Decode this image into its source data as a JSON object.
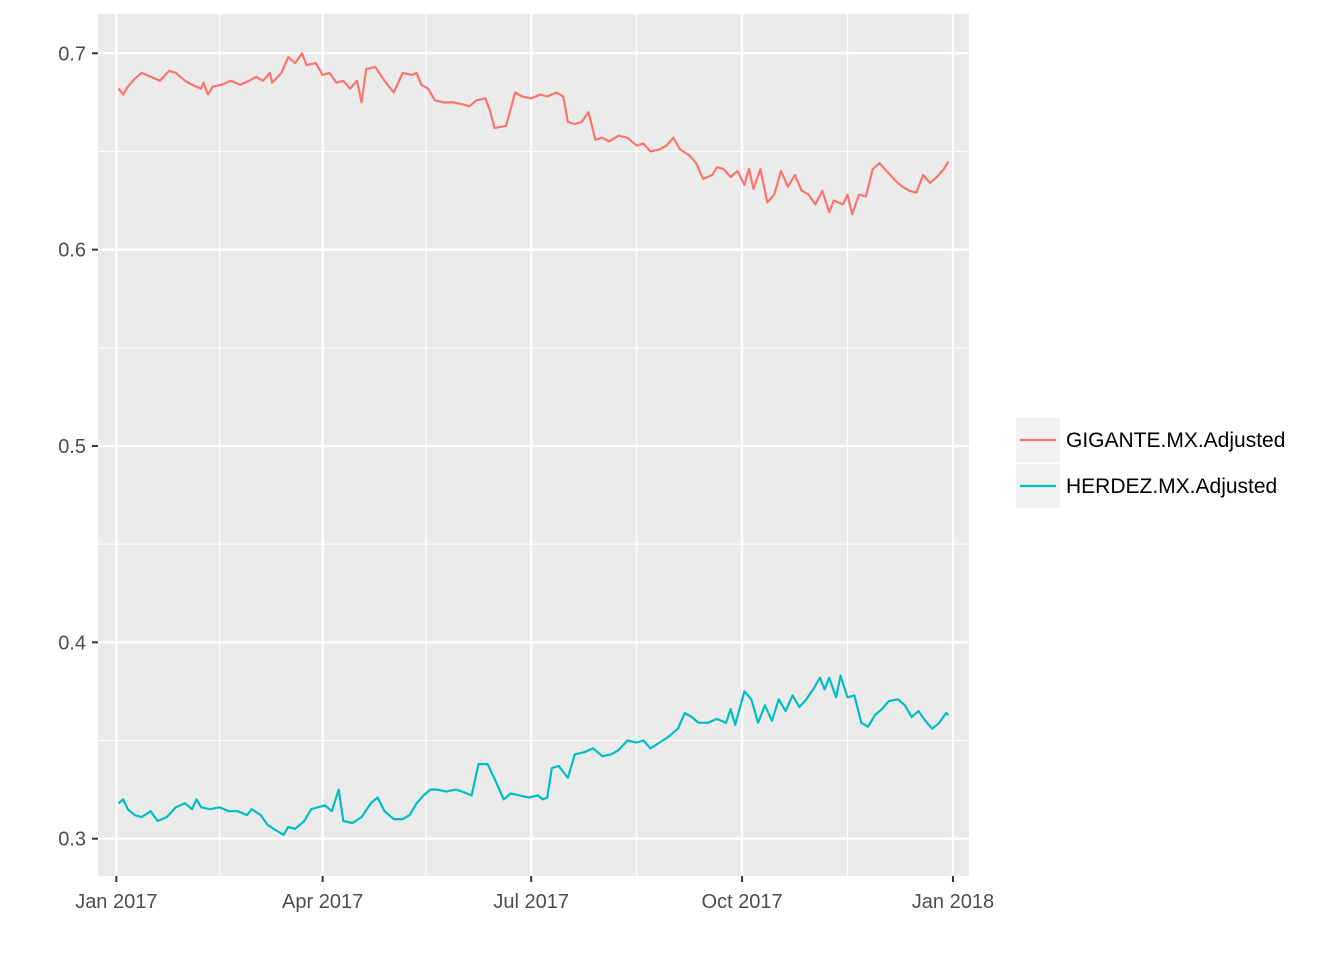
{
  "chart_data": {
    "type": "line",
    "title": "",
    "xlabel": "",
    "ylabel": "",
    "x_axis": {
      "type": "date",
      "range": [
        "2016-12-24",
        "2018-01-08"
      ],
      "ticks": [
        {
          "value": "2017-01-01",
          "label": "Jan 2017"
        },
        {
          "value": "2017-04-01",
          "label": "Apr 2017"
        },
        {
          "value": "2017-07-01",
          "label": "Jul 2017"
        },
        {
          "value": "2017-10-01",
          "label": "Oct 2017"
        },
        {
          "value": "2018-01-01",
          "label": "Jan 2018"
        }
      ],
      "minor_ticks": [
        "2017-02-15",
        "2017-05-16",
        "2017-08-16",
        "2017-11-16"
      ]
    },
    "y_axis": {
      "range": [
        0.281,
        0.72
      ],
      "ticks": [
        {
          "value": 0.3,
          "label": "0.3"
        },
        {
          "value": 0.4,
          "label": "0.4"
        },
        {
          "value": 0.5,
          "label": "0.5"
        },
        {
          "value": 0.6,
          "label": "0.6"
        },
        {
          "value": 0.7,
          "label": "0.7"
        }
      ],
      "minor_ticks": [
        0.35,
        0.45,
        0.55,
        0.65
      ]
    },
    "grid": true,
    "legend": {
      "position": "right"
    },
    "series": [
      {
        "name": "GIGANTE.MX.Adjusted",
        "color": "#F8766D",
        "points": [
          [
            "2017-01-02",
            0.682
          ],
          [
            "2017-01-04",
            0.679
          ],
          [
            "2017-01-06",
            0.683
          ],
          [
            "2017-01-09",
            0.687
          ],
          [
            "2017-01-12",
            0.69
          ],
          [
            "2017-01-16",
            0.688
          ],
          [
            "2017-01-20",
            0.686
          ],
          [
            "2017-01-24",
            0.691
          ],
          [
            "2017-01-27",
            0.69
          ],
          [
            "2017-01-31",
            0.686
          ],
          [
            "2017-02-03",
            0.684
          ],
          [
            "2017-02-07",
            0.682
          ],
          [
            "2017-02-08",
            0.685
          ],
          [
            "2017-02-10",
            0.679
          ],
          [
            "2017-02-12",
            0.683
          ],
          [
            "2017-02-16",
            0.684
          ],
          [
            "2017-02-20",
            0.686
          ],
          [
            "2017-02-24",
            0.684
          ],
          [
            "2017-02-28",
            0.686
          ],
          [
            "2017-03-03",
            0.688
          ],
          [
            "2017-03-06",
            0.686
          ],
          [
            "2017-03-09",
            0.69
          ],
          [
            "2017-03-10",
            0.685
          ],
          [
            "2017-03-14",
            0.69
          ],
          [
            "2017-03-17",
            0.698
          ],
          [
            "2017-03-20",
            0.695
          ],
          [
            "2017-03-23",
            0.7
          ],
          [
            "2017-03-25",
            0.694
          ],
          [
            "2017-03-29",
            0.695
          ],
          [
            "2017-04-01",
            0.689
          ],
          [
            "2017-04-04",
            0.69
          ],
          [
            "2017-04-07",
            0.685
          ],
          [
            "2017-04-10",
            0.686
          ],
          [
            "2017-04-13",
            0.682
          ],
          [
            "2017-04-16",
            0.686
          ],
          [
            "2017-04-18",
            0.675
          ],
          [
            "2017-04-20",
            0.692
          ],
          [
            "2017-04-24",
            0.693
          ],
          [
            "2017-04-28",
            0.686
          ],
          [
            "2017-05-02",
            0.68
          ],
          [
            "2017-05-06",
            0.69
          ],
          [
            "2017-05-10",
            0.689
          ],
          [
            "2017-05-12",
            0.69
          ],
          [
            "2017-05-14",
            0.684
          ],
          [
            "2017-05-17",
            0.682
          ],
          [
            "2017-05-20",
            0.676
          ],
          [
            "2017-05-24",
            0.675
          ],
          [
            "2017-05-28",
            0.675
          ],
          [
            "2017-06-01",
            0.674
          ],
          [
            "2017-06-04",
            0.673
          ],
          [
            "2017-06-07",
            0.676
          ],
          [
            "2017-06-11",
            0.677
          ],
          [
            "2017-06-13",
            0.671
          ],
          [
            "2017-06-15",
            0.662
          ],
          [
            "2017-06-20",
            0.663
          ],
          [
            "2017-06-24",
            0.68
          ],
          [
            "2017-06-27",
            0.678
          ],
          [
            "2017-07-01",
            0.677
          ],
          [
            "2017-07-05",
            0.679
          ],
          [
            "2017-07-08",
            0.678
          ],
          [
            "2017-07-12",
            0.68
          ],
          [
            "2017-07-15",
            0.678
          ],
          [
            "2017-07-17",
            0.665
          ],
          [
            "2017-07-20",
            0.664
          ],
          [
            "2017-07-23",
            0.665
          ],
          [
            "2017-07-26",
            0.67
          ],
          [
            "2017-07-29",
            0.656
          ],
          [
            "2017-08-01",
            0.657
          ],
          [
            "2017-08-04",
            0.655
          ],
          [
            "2017-08-08",
            0.658
          ],
          [
            "2017-08-12",
            0.657
          ],
          [
            "2017-08-16",
            0.653
          ],
          [
            "2017-08-19",
            0.654
          ],
          [
            "2017-08-22",
            0.65
          ],
          [
            "2017-08-26",
            0.651
          ],
          [
            "2017-08-29",
            0.653
          ],
          [
            "2017-09-01",
            0.657
          ],
          [
            "2017-09-04",
            0.651
          ],
          [
            "2017-09-08",
            0.648
          ],
          [
            "2017-09-11",
            0.644
          ],
          [
            "2017-09-14",
            0.636
          ],
          [
            "2017-09-18",
            0.638
          ],
          [
            "2017-09-20",
            0.642
          ],
          [
            "2017-09-23",
            0.641
          ],
          [
            "2017-09-26",
            0.637
          ],
          [
            "2017-09-29",
            0.64
          ],
          [
            "2017-10-02",
            0.633
          ],
          [
            "2017-10-04",
            0.641
          ],
          [
            "2017-10-06",
            0.631
          ],
          [
            "2017-10-09",
            0.641
          ],
          [
            "2017-10-12",
            0.624
          ],
          [
            "2017-10-15",
            0.628
          ],
          [
            "2017-10-18",
            0.64
          ],
          [
            "2017-10-21",
            0.632
          ],
          [
            "2017-10-24",
            0.638
          ],
          [
            "2017-10-27",
            0.63
          ],
          [
            "2017-10-30",
            0.628
          ],
          [
            "2017-11-02",
            0.623
          ],
          [
            "2017-11-05",
            0.63
          ],
          [
            "2017-11-08",
            0.619
          ],
          [
            "2017-11-10",
            0.625
          ],
          [
            "2017-11-14",
            0.623
          ],
          [
            "2017-11-16",
            0.628
          ],
          [
            "2017-11-18",
            0.618
          ],
          [
            "2017-11-21",
            0.628
          ],
          [
            "2017-11-24",
            0.627
          ],
          [
            "2017-11-27",
            0.641
          ],
          [
            "2017-11-30",
            0.644
          ],
          [
            "2017-12-03",
            0.64
          ],
          [
            "2017-12-07",
            0.635
          ],
          [
            "2017-12-10",
            0.632
          ],
          [
            "2017-12-13",
            0.63
          ],
          [
            "2017-12-16",
            0.629
          ],
          [
            "2017-12-19",
            0.638
          ],
          [
            "2017-12-22",
            0.634
          ],
          [
            "2017-12-25",
            0.637
          ],
          [
            "2017-12-28",
            0.641
          ],
          [
            "2017-12-30",
            0.645
          ]
        ]
      },
      {
        "name": "HERDEZ.MX.Adjusted",
        "color": "#00BFC4",
        "points": [
          [
            "2017-01-02",
            0.318
          ],
          [
            "2017-01-04",
            0.32
          ],
          [
            "2017-01-06",
            0.315
          ],
          [
            "2017-01-09",
            0.312
          ],
          [
            "2017-01-12",
            0.311
          ],
          [
            "2017-01-16",
            0.314
          ],
          [
            "2017-01-19",
            0.309
          ],
          [
            "2017-01-23",
            0.311
          ],
          [
            "2017-01-27",
            0.316
          ],
          [
            "2017-01-31",
            0.318
          ],
          [
            "2017-02-03",
            0.315
          ],
          [
            "2017-02-05",
            0.32
          ],
          [
            "2017-02-07",
            0.316
          ],
          [
            "2017-02-11",
            0.315
          ],
          [
            "2017-02-15",
            0.316
          ],
          [
            "2017-02-19",
            0.314
          ],
          [
            "2017-02-23",
            0.314
          ],
          [
            "2017-02-27",
            0.312
          ],
          [
            "2017-03-01",
            0.315
          ],
          [
            "2017-03-05",
            0.312
          ],
          [
            "2017-03-08",
            0.307
          ],
          [
            "2017-03-12",
            0.304
          ],
          [
            "2017-03-15",
            0.302
          ],
          [
            "2017-03-17",
            0.306
          ],
          [
            "2017-03-20",
            0.305
          ],
          [
            "2017-03-24",
            0.309
          ],
          [
            "2017-03-27",
            0.315
          ],
          [
            "2017-03-30",
            0.316
          ],
          [
            "2017-04-02",
            0.317
          ],
          [
            "2017-04-05",
            0.314
          ],
          [
            "2017-04-08",
            0.325
          ],
          [
            "2017-04-10",
            0.309
          ],
          [
            "2017-04-14",
            0.308
          ],
          [
            "2017-04-18",
            0.311
          ],
          [
            "2017-04-22",
            0.318
          ],
          [
            "2017-04-25",
            0.321
          ],
          [
            "2017-04-28",
            0.314
          ],
          [
            "2017-05-02",
            0.31
          ],
          [
            "2017-05-06",
            0.31
          ],
          [
            "2017-05-09",
            0.312
          ],
          [
            "2017-05-12",
            0.318
          ],
          [
            "2017-05-15",
            0.322
          ],
          [
            "2017-05-18",
            0.325
          ],
          [
            "2017-05-21",
            0.325
          ],
          [
            "2017-05-25",
            0.324
          ],
          [
            "2017-05-29",
            0.325
          ],
          [
            "2017-06-01",
            0.324
          ],
          [
            "2017-06-05",
            0.322
          ],
          [
            "2017-06-08",
            0.338
          ],
          [
            "2017-06-12",
            0.338
          ],
          [
            "2017-06-16",
            0.328
          ],
          [
            "2017-06-19",
            0.32
          ],
          [
            "2017-06-22",
            0.323
          ],
          [
            "2017-06-26",
            0.322
          ],
          [
            "2017-06-30",
            0.321
          ],
          [
            "2017-07-04",
            0.322
          ],
          [
            "2017-07-06",
            0.32
          ],
          [
            "2017-07-08",
            0.321
          ],
          [
            "2017-07-10",
            0.336
          ],
          [
            "2017-07-13",
            0.337
          ],
          [
            "2017-07-17",
            0.331
          ],
          [
            "2017-07-20",
            0.343
          ],
          [
            "2017-07-24",
            0.344
          ],
          [
            "2017-07-28",
            0.346
          ],
          [
            "2017-08-01",
            0.342
          ],
          [
            "2017-08-05",
            0.343
          ],
          [
            "2017-08-08",
            0.345
          ],
          [
            "2017-08-12",
            0.35
          ],
          [
            "2017-08-16",
            0.349
          ],
          [
            "2017-08-19",
            0.35
          ],
          [
            "2017-08-22",
            0.346
          ],
          [
            "2017-08-26",
            0.349
          ],
          [
            "2017-08-30",
            0.352
          ],
          [
            "2017-09-03",
            0.356
          ],
          [
            "2017-09-06",
            0.364
          ],
          [
            "2017-09-09",
            0.362
          ],
          [
            "2017-09-12",
            0.359
          ],
          [
            "2017-09-16",
            0.359
          ],
          [
            "2017-09-20",
            0.361
          ],
          [
            "2017-09-24",
            0.359
          ],
          [
            "2017-09-26",
            0.366
          ],
          [
            "2017-09-28",
            0.358
          ],
          [
            "2017-10-02",
            0.375
          ],
          [
            "2017-10-05",
            0.371
          ],
          [
            "2017-10-08",
            0.359
          ],
          [
            "2017-10-11",
            0.368
          ],
          [
            "2017-10-14",
            0.36
          ],
          [
            "2017-10-17",
            0.371
          ],
          [
            "2017-10-20",
            0.365
          ],
          [
            "2017-10-23",
            0.373
          ],
          [
            "2017-10-26",
            0.367
          ],
          [
            "2017-10-29",
            0.371
          ],
          [
            "2017-11-01",
            0.376
          ],
          [
            "2017-11-04",
            0.382
          ],
          [
            "2017-11-06",
            0.376
          ],
          [
            "2017-11-08",
            0.382
          ],
          [
            "2017-11-11",
            0.372
          ],
          [
            "2017-11-13",
            0.383
          ],
          [
            "2017-11-16",
            0.372
          ],
          [
            "2017-11-19",
            0.373
          ],
          [
            "2017-11-22",
            0.359
          ],
          [
            "2017-11-25",
            0.357
          ],
          [
            "2017-11-28",
            0.363
          ],
          [
            "2017-12-01",
            0.366
          ],
          [
            "2017-12-04",
            0.37
          ],
          [
            "2017-12-08",
            0.371
          ],
          [
            "2017-12-11",
            0.368
          ],
          [
            "2017-12-14",
            0.362
          ],
          [
            "2017-12-17",
            0.365
          ],
          [
            "2017-12-20",
            0.36
          ],
          [
            "2017-12-23",
            0.356
          ],
          [
            "2017-12-26",
            0.359
          ],
          [
            "2017-12-29",
            0.364
          ],
          [
            "2017-12-30",
            0.363
          ]
        ]
      }
    ]
  }
}
